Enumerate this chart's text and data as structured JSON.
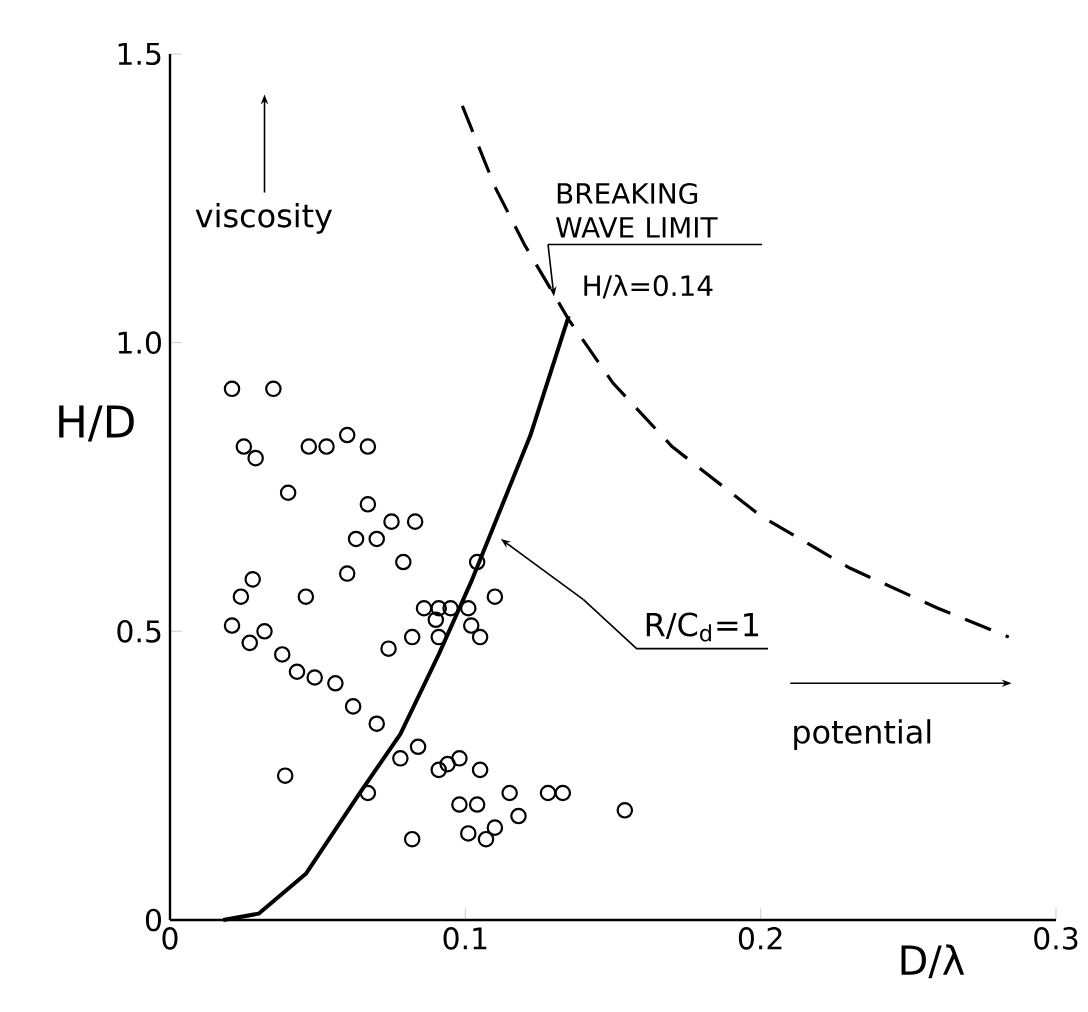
{
  "chart_data": {
    "type": "scatter",
    "xlabel": "D/λ",
    "ylabel": "H/D",
    "xlim": [
      0,
      0.3
    ],
    "ylim": [
      0,
      1.5
    ],
    "xticks": [
      0,
      0.1,
      0.2,
      0.3
    ],
    "yticks": [
      0,
      0.5,
      {
        "value": 1.0,
        "label": "1.0"
      },
      1.5
    ],
    "grid": false,
    "marker": "circle",
    "annotations": [
      "viscosity",
      {
        "text": "BREAKING WAVE LIMIT",
        "x": 0.13,
        "y": 1.08
      },
      "H/λ=0.14",
      "R/C$_{d}$=1",
      "potential"
    ],
    "series": [
      {
        "color": "#000000",
        "x": [
          0.021,
          0.035,
          0.025,
          0.029,
          0.047,
          0.053,
          0.06,
          0.067,
          0.04,
          0.067,
          0.075,
          0.083,
          0.063,
          0.07,
          0.079,
          0.104,
          0.11,
          0.06,
          0.028,
          0.024,
          0.046,
          0.086,
          0.091,
          0.095,
          0.101,
          0.09,
          0.102,
          0.021,
          0.032,
          0.027,
          0.082,
          0.091,
          0.105,
          0.074,
          0.038,
          0.043,
          0.049,
          0.056,
          0.062,
          0.07,
          0.084,
          0.078,
          0.091,
          0.094,
          0.098,
          0.105,
          0.039,
          0.067,
          0.098,
          0.104,
          0.115,
          0.118,
          0.082,
          0.101,
          0.107,
          0.11,
          0.128,
          0.133,
          0.154
        ],
        "values": [
          0.92,
          0.92,
          0.82,
          0.8,
          0.82,
          0.82,
          0.84,
          0.82,
          0.74,
          0.72,
          0.69,
          0.69,
          0.66,
          0.66,
          0.62,
          0.62,
          0.56,
          0.6,
          0.59,
          0.56,
          0.56,
          0.54,
          0.54,
          0.54,
          0.54,
          0.52,
          0.51,
          0.51,
          0.5,
          0.48,
          0.49,
          0.49,
          0.49,
          0.47,
          0.46,
          0.43,
          0.42,
          0.41,
          0.37,
          0.34,
          0.3,
          0.28,
          0.26,
          0.27,
          0.28,
          0.26,
          0.25,
          0.22,
          0.2,
          0.2,
          0.22,
          0.18,
          0.14,
          0.15,
          0.14,
          0.16,
          0.22,
          0.22,
          0.19
        ]
      },
      {
        "type": "line",
        "color": "#000000",
        "line_style": "solid",
        "marker": "none",
        "x": [
          0.018,
          0.03,
          0.046,
          0.064,
          0.078,
          0.091,
          0.102,
          0.122,
          0.135
        ],
        "values": [
          0.0,
          0.011,
          0.08,
          0.218,
          0.322,
          0.46,
          0.586,
          0.839,
          1.046
        ]
      },
      {
        "type": "line",
        "color": "#000000",
        "line_style": "dashed",
        "marker": "none",
        "x": [
          0.099,
          0.11,
          0.12,
          0.135,
          0.15,
          0.17,
          0.2,
          0.23,
          0.26,
          0.284
        ],
        "values": [
          1.41,
          1.27,
          1.17,
          1.04,
          0.93,
          0.82,
          0.7,
          0.61,
          0.54,
          0.49
        ]
      }
    ]
  }
}
